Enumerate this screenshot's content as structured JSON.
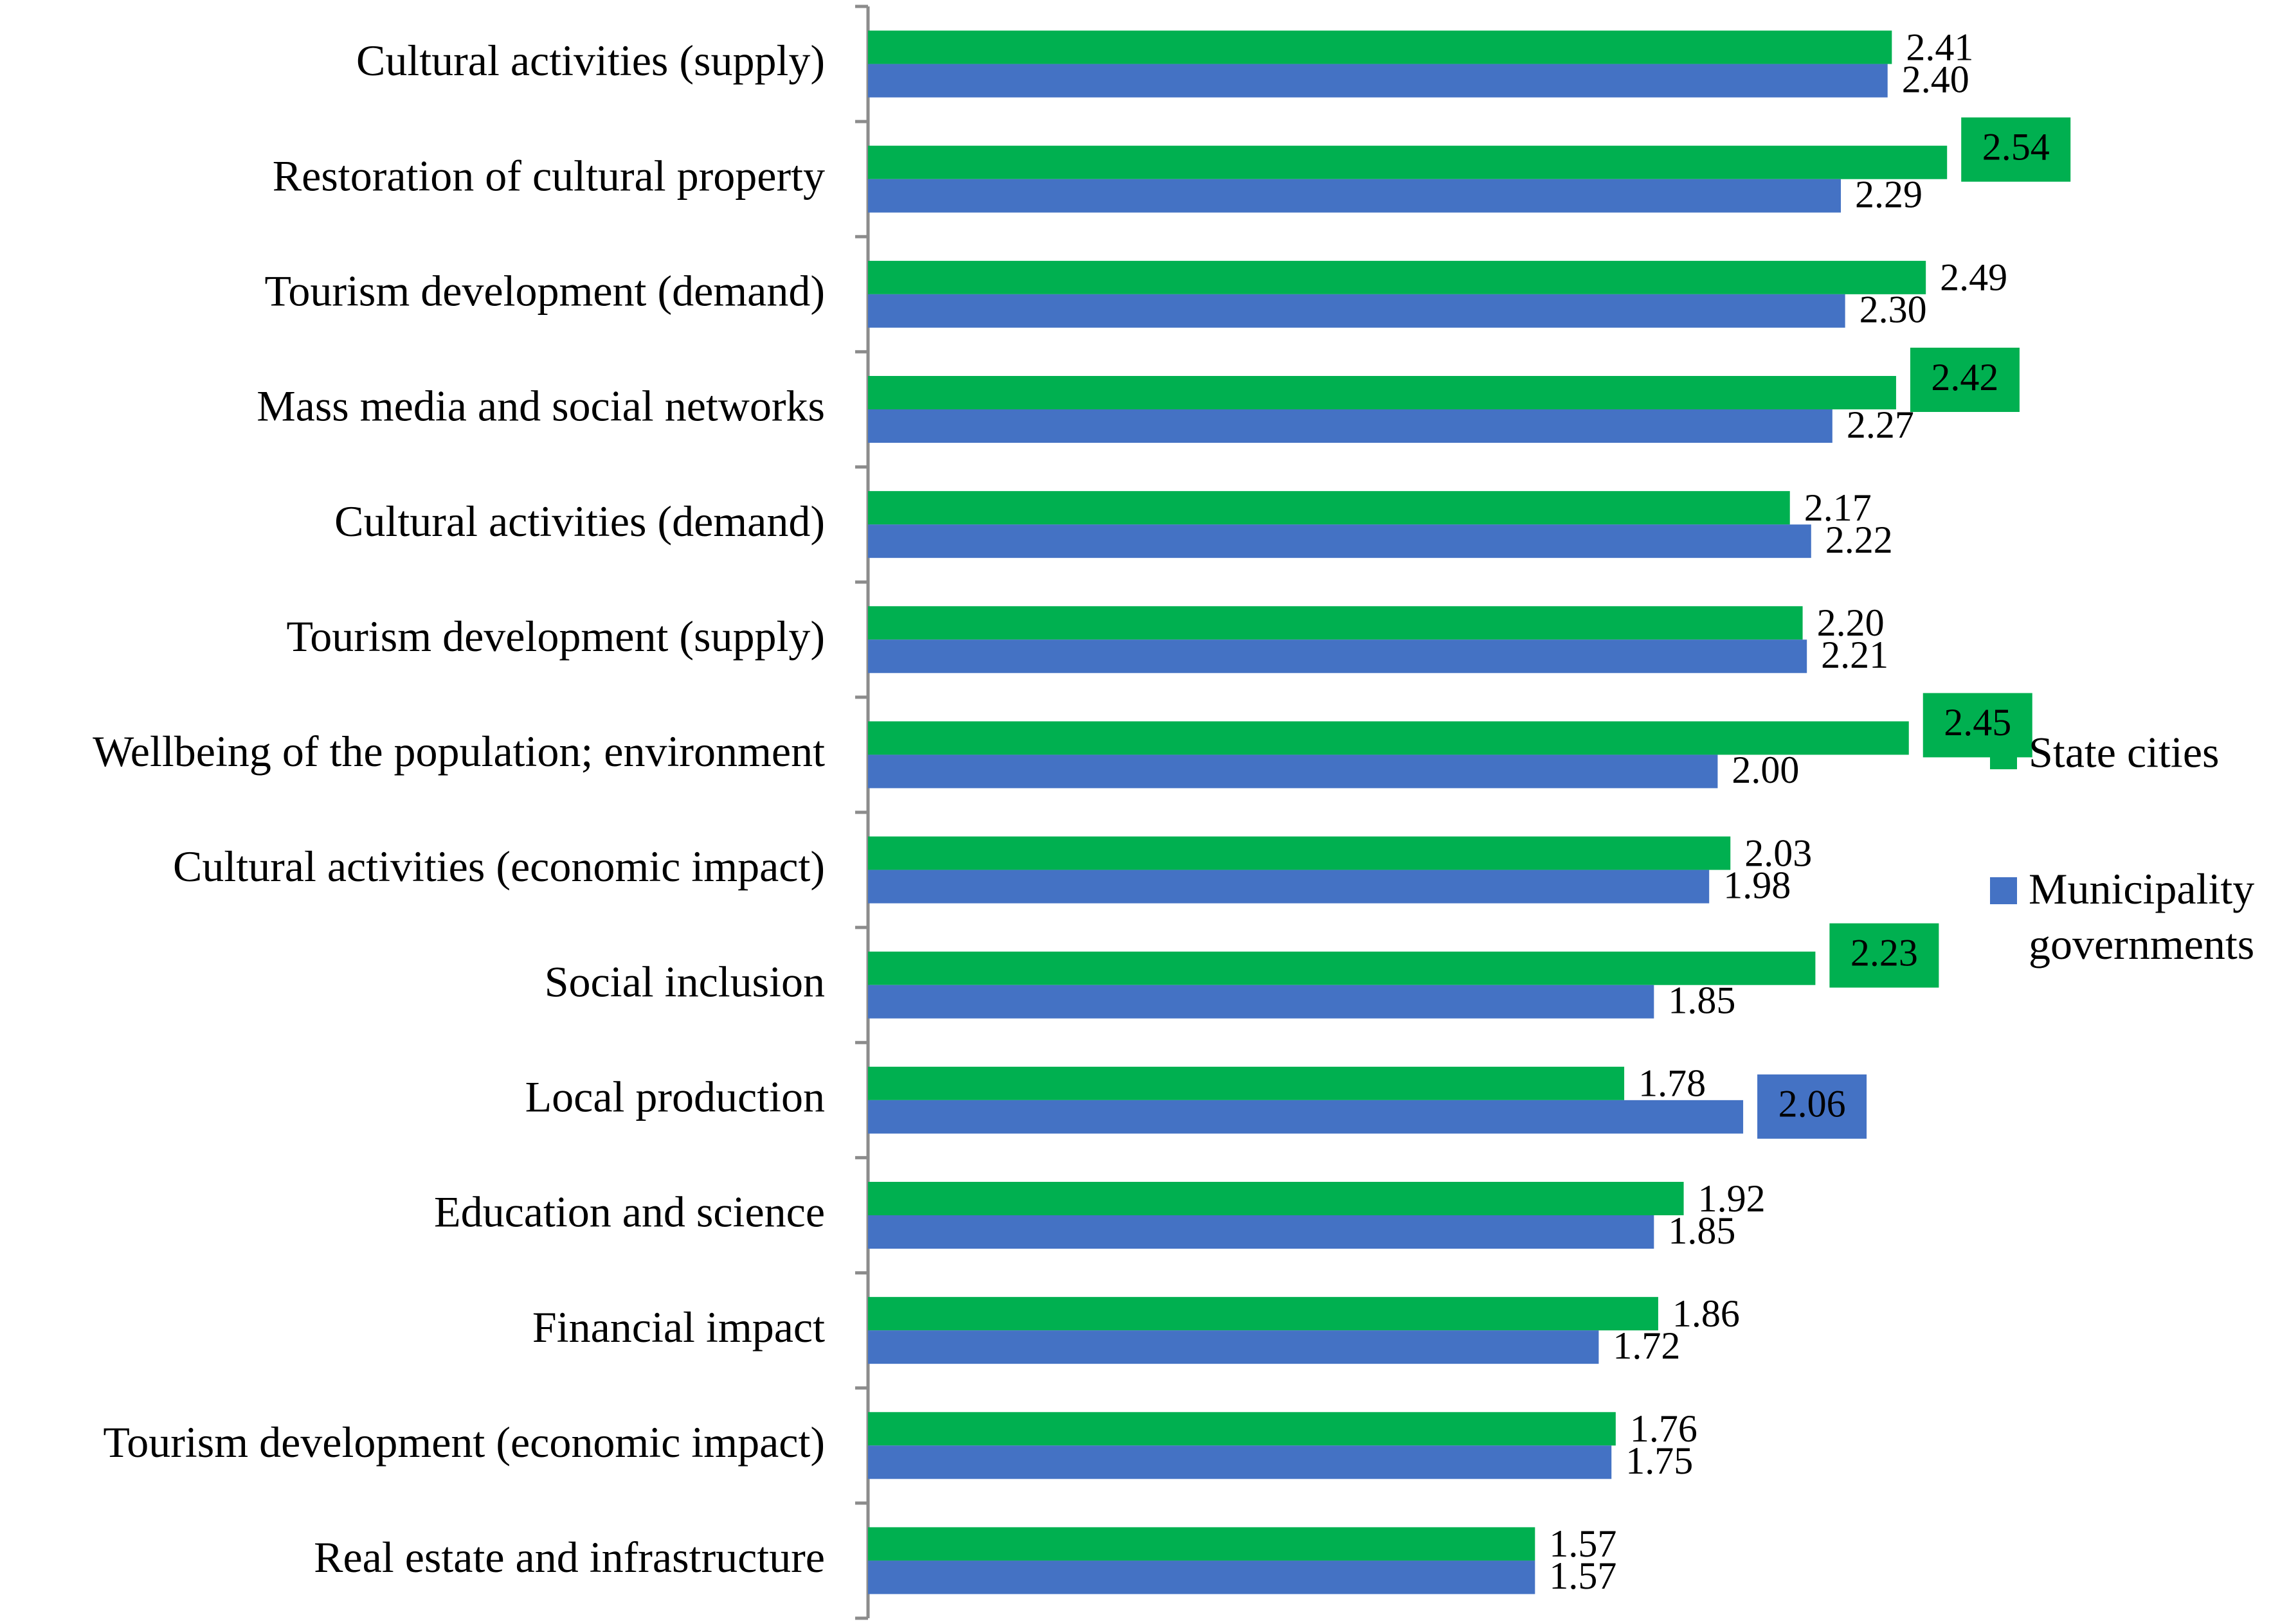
{
  "chart_data": {
    "type": "bar",
    "orientation": "horizontal",
    "title": "",
    "xlabel": "",
    "ylabel": "",
    "xlim": [
      0,
      2.8
    ],
    "grid": false,
    "legend_position": "right",
    "categories": [
      "Cultural activities (supply)",
      "Restoration of cultural property",
      "Tourism development (demand)",
      "Mass media and social networks",
      "Cultural activities (demand)",
      "Tourism development (supply)",
      "Wellbeing of the population; environment",
      "Cultural activities (economic impact)",
      "Social inclusion",
      "Local production",
      "Education and science",
      "Financial impact",
      "Tourism development (economic impact)",
      "Real estate and infrastructure"
    ],
    "series": [
      {
        "name": "State cities",
        "color": "#00B050",
        "values": [
          2.41,
          2.54,
          2.49,
          2.42,
          2.17,
          2.2,
          2.45,
          2.03,
          2.23,
          1.78,
          1.92,
          1.86,
          1.76,
          1.57
        ],
        "labels": [
          "2.41",
          "2.54",
          "2.49",
          "2.42",
          "2.17",
          "2.20",
          "2.45",
          "2.03",
          "2.23",
          "1.78",
          "1.92",
          "1.86",
          "1.76",
          "1.57"
        ],
        "highlighted": [
          false,
          true,
          false,
          true,
          false,
          false,
          true,
          false,
          true,
          false,
          false,
          false,
          false,
          false
        ]
      },
      {
        "name": "Municipality governments",
        "name_lines": [
          "Municipality",
          "governments"
        ],
        "color": "#4472C4",
        "values": [
          2.4,
          2.29,
          2.3,
          2.27,
          2.22,
          2.21,
          2.0,
          1.98,
          1.85,
          2.06,
          1.85,
          1.72,
          1.75,
          1.57
        ],
        "labels": [
          "2.40",
          "2.29",
          "2.30",
          "2.27",
          "2.22",
          "2.21",
          "2.00",
          "1.98",
          "1.85",
          "2.06",
          "1.85",
          "1.72",
          "1.75",
          "1.57"
        ],
        "highlighted": [
          false,
          false,
          false,
          false,
          false,
          false,
          false,
          false,
          false,
          true,
          false,
          false,
          false,
          false
        ]
      }
    ]
  }
}
